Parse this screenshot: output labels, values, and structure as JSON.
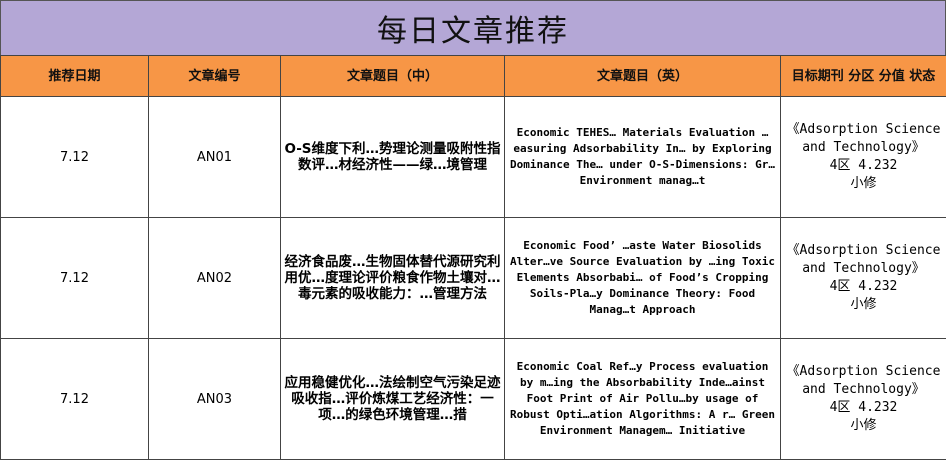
{
  "title": "每日文章推荐",
  "headers": [
    "推荐日期",
    "文章编号",
    "文章题目（中）",
    "文章题目（英）",
    "目标期刊 分区 分值 状态"
  ],
  "rows": [
    {
      "date": "7.12",
      "id": "AN01",
      "title_zh": "O-S维度下利…势理论测量吸附性指数评…材经济性——绿…境管理",
      "title_en": "Economic TEHES… Materials Evaluation …easuring Adsorbability In… by Exploring Dominance The… under O-S-Dimensions: Gr… Environment manag…t",
      "journal": "《Adsorption Science and Technology》",
      "zone": "4区 4.232",
      "status": "小修"
    },
    {
      "date": "7.12",
      "id": "AN02",
      "title_zh": "经济食品废…生物固体替代源研究利用优…度理论评价粮食作物土壤对…毒元素的吸收能力：…管理方法",
      "title_en": "Economic Food’ …aste Water Biosolids Alter…ve Source Evaluation by …ing Toxic Elements Absorbabi… of Food’s Cropping Soils-Pla…y Dominance Theory: Food Manag…t Approach",
      "journal": "《Adsorption Science and Technology》",
      "zone": "4区 4.232",
      "status": "小修"
    },
    {
      "date": "7.12",
      "id": "AN03",
      "title_zh": "应用稳健优化…法绘制空气污染足迹吸收指…评价炼煤工艺经济性：一项…的绿色环境管理…措",
      "title_en": "Economic Coal Ref…y Process evaluation by m…ing the Absorbability Inde…ainst Foot Print of Air Pollu…by usage of Robust Opti…ation Algorithms: A r… Green Environment Managem… Initiative",
      "journal": "《Adsorption Science and Technology》",
      "zone": "4区 4.232",
      "status": "小修"
    }
  ],
  "colors": {
    "title_bg": "#b4a7d6",
    "header_bg": "#f79646"
  }
}
